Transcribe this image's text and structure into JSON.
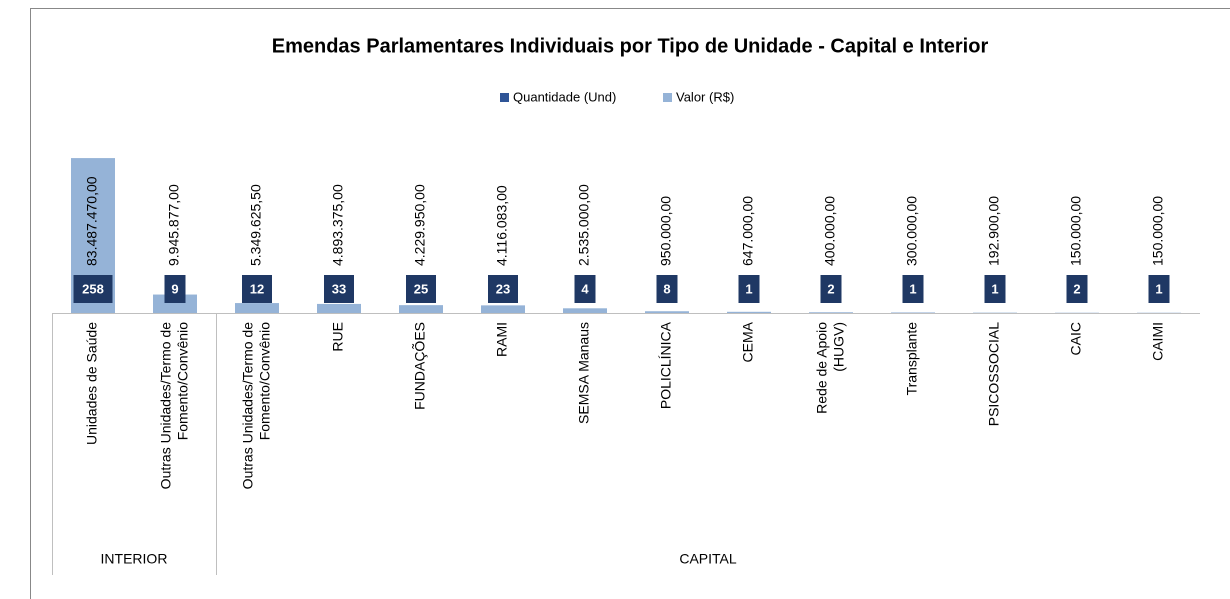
{
  "chart_data": {
    "type": "bar",
    "title": "Emendas Parlamentares Individuais por Tipo de Unidade - Capital e Interior",
    "categories": [
      "Unidades de Saúde",
      "Outras Unidades/Termo de\nFomento/Convênio",
      "Outras Unidades/Termo de\nFomento/Convênio",
      "RUE",
      "FUNDAÇÕES",
      "RAMI",
      "SEMSA Manaus",
      "POLICLÍNICA",
      "CEMA",
      "Rede de Apoio\n(HUGV)",
      "Transplante",
      "PSICOSSOCIAL",
      "CAIC",
      "CAIMI"
    ],
    "category_groups": [
      "INTERIOR",
      "INTERIOR",
      "CAPITAL",
      "CAPITAL",
      "CAPITAL",
      "CAPITAL",
      "CAPITAL",
      "CAPITAL",
      "CAPITAL",
      "CAPITAL",
      "CAPITAL",
      "CAPITAL",
      "CAPITAL",
      "CAPITAL"
    ],
    "series": [
      {
        "name": "Quantidade (Und)",
        "color": "#1f3864",
        "values": [
          258,
          9,
          12,
          33,
          25,
          23,
          4,
          8,
          1,
          2,
          1,
          1,
          2,
          1
        ]
      },
      {
        "name": "Valor (R$)",
        "color": "#95b3d7",
        "values": [
          83487470,
          9945877,
          5349625.5,
          4893375,
          4229950,
          4116083,
          2535000,
          950000,
          647000,
          400000,
          300000,
          192900,
          150000,
          150000
        ],
        "value_labels": [
          "83.487.470,00",
          "9.945.877,00",
          "5.349.625,50",
          "4.893.375,00",
          "4.229.950,00",
          "4.116.083,00",
          "2.535.000,00",
          "950.000,00",
          "647.000,00",
          "400.000,00",
          "300.000,00",
          "192.900,00",
          "150.000,00",
          "150.000,00"
        ]
      }
    ],
    "ylim": [
      0,
      90000000
    ],
    "legend": "top"
  }
}
